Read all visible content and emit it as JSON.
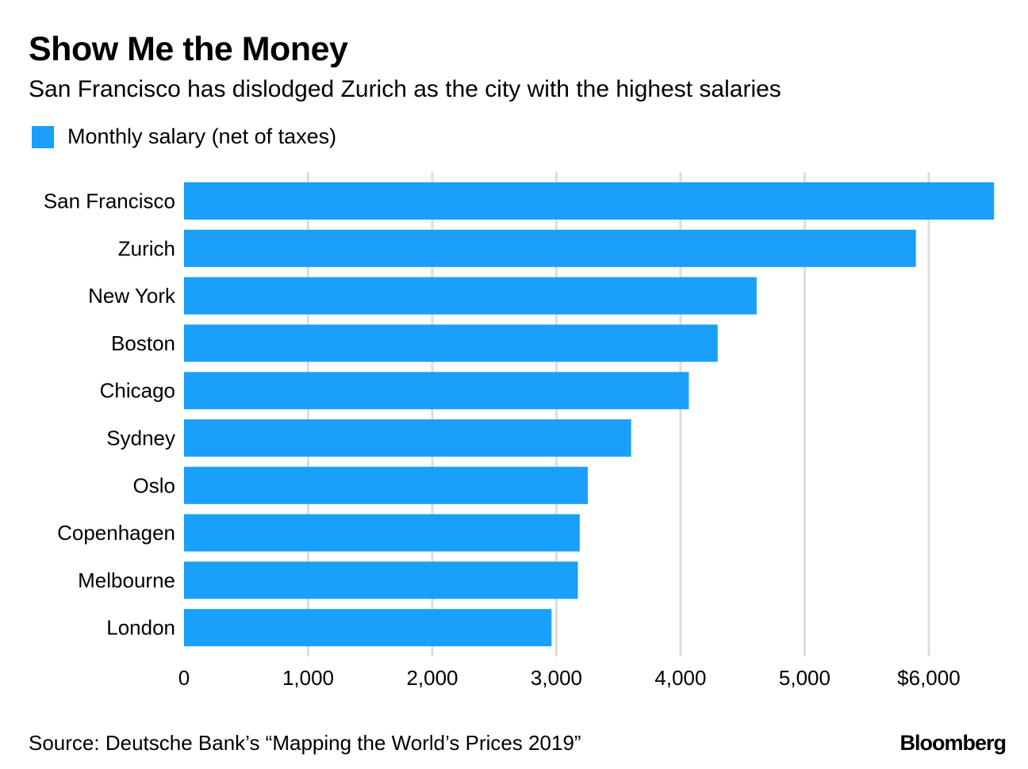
{
  "chart_data": {
    "type": "bar",
    "orientation": "horizontal",
    "title": "Show Me the Money",
    "subtitle": "San Francisco has dislodged Zurich as the city with the highest salaries",
    "legend": [
      {
        "label": "Monthly salary (net of taxes)",
        "color": "#1a9ffb"
      }
    ],
    "categories": [
      "San Francisco",
      "Zurich",
      "New York",
      "Boston",
      "Chicago",
      "Sydney",
      "Oslo",
      "Copenhagen",
      "Melbourne",
      "London"
    ],
    "values": [
      6526,
      5896,
      4613,
      4299,
      4067,
      3602,
      3253,
      3188,
      3173,
      2961
    ],
    "xlim": [
      0,
      6550
    ],
    "xticks": [
      0,
      1000,
      2000,
      3000,
      4000,
      5000,
      6000
    ],
    "xtick_labels": [
      "0",
      "1,000",
      "2,000",
      "3,000",
      "4,000",
      "5,000",
      "$6,000"
    ],
    "grid": true,
    "bar_color": "#1a9ffb",
    "grid_color": "#dddddd"
  },
  "footer": {
    "source": "Source: Deutsche Bank’s “Mapping the World’s Prices 2019”",
    "brand": "Bloomberg"
  }
}
